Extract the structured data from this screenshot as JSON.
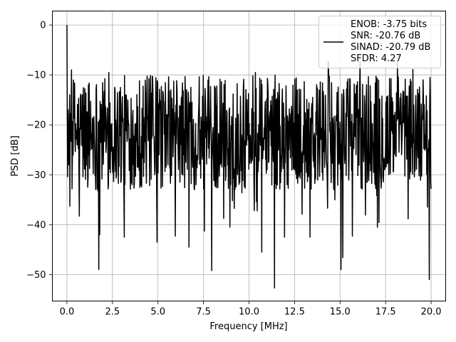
{
  "chart_data": {
    "type": "line",
    "xlabel": "Frequency [MHz]",
    "ylabel": "PSD [dB]",
    "xlim": [
      -0.8,
      20.8
    ],
    "ylim": [
      -55.3,
      2.8
    ],
    "xticks": [
      0.0,
      2.5,
      5.0,
      7.5,
      10.0,
      12.5,
      15.0,
      17.5,
      20.0
    ],
    "xtick_labels": [
      "0.0",
      "2.5",
      "5.0",
      "7.5",
      "10.0",
      "12.5",
      "15.0",
      "17.5",
      "20.0"
    ],
    "yticks": [
      0,
      -10,
      -20,
      -30,
      -40,
      -50
    ],
    "ytick_labels": [
      "0",
      "−10",
      "−20",
      "−30",
      "−40",
      "−50"
    ],
    "grid": true,
    "legend_position": "top-right",
    "legend_lines": [
      "ENOB: -3.75 bits",
      "SNR: -20.76 dB",
      "SINAD: -20.79 dB",
      "SFDR: 4.27"
    ],
    "series": [
      {
        "color": "#000000",
        "x_start": 0.0,
        "x_end": 20.0,
        "points": 1000,
        "noise_floor_range_db": [
          -33,
          -10
        ],
        "peak": {
          "x": 0.0,
          "y": 0.0
        },
        "spikes": [
          {
            "x": 0.06,
            "y": -17.0
          },
          {
            "x": 0.1,
            "y": -7.0
          },
          {
            "x": 0.15,
            "y": -14.0
          },
          {
            "x": 0.25,
            "y": -9.0
          },
          {
            "x": 0.1,
            "y": -28.0
          },
          {
            "x": 0.16,
            "y": -36.3
          },
          {
            "x": 0.68,
            "y": -38.3
          },
          {
            "x": 1.75,
            "y": -49.0
          },
          {
            "x": 1.8,
            "y": -42.0
          },
          {
            "x": 2.3,
            "y": -9.5
          },
          {
            "x": 3.15,
            "y": -42.5
          },
          {
            "x": 4.95,
            "y": -43.5
          },
          {
            "x": 5.95,
            "y": -42.3
          },
          {
            "x": 6.7,
            "y": -44.5
          },
          {
            "x": 7.55,
            "y": -41.3
          },
          {
            "x": 7.95,
            "y": -49.2
          },
          {
            "x": 8.95,
            "y": -40.5
          },
          {
            "x": 10.35,
            "y": -9.5
          },
          {
            "x": 10.7,
            "y": -45.5
          },
          {
            "x": 11.4,
            "y": -52.7
          },
          {
            "x": 11.95,
            "y": -42.5
          },
          {
            "x": 13.35,
            "y": -42.5
          },
          {
            "x": 14.35,
            "y": -7.3
          },
          {
            "x": 15.05,
            "y": -49.0
          },
          {
            "x": 15.15,
            "y": -46.6
          },
          {
            "x": 16.1,
            "y": -7.3
          },
          {
            "x": 17.05,
            "y": -40.5
          },
          {
            "x": 18.15,
            "y": -7.3
          },
          {
            "x": 19.0,
            "y": -8.9
          },
          {
            "x": 19.9,
            "y": -51.0
          },
          {
            "x": 19.8,
            "y": -36.5
          }
        ]
      }
    ]
  }
}
